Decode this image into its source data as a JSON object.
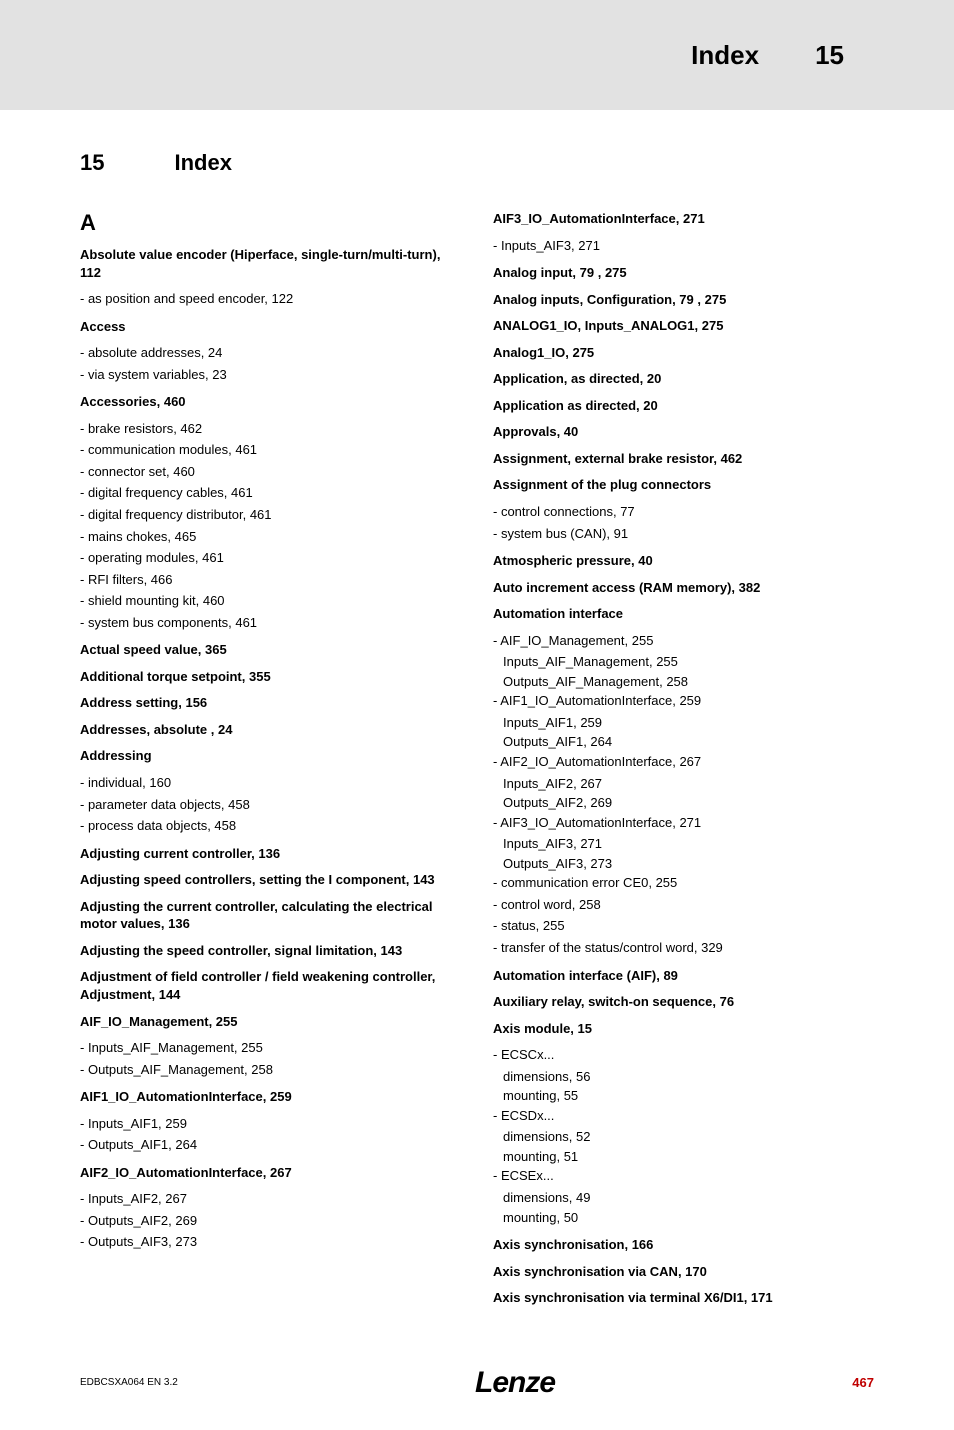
{
  "header": {
    "title": "Index",
    "chapter_number": "15"
  },
  "chapter_heading_num": "15",
  "chapter_heading_title": "Index",
  "alpha_heading": "A",
  "left": {
    "e1": "Absolute value encoder (Hiperface, single-turn/multi-turn),  112",
    "e1s1": "as position and speed encoder,  122",
    "e2": "Access",
    "e2s1": "absolute addresses,  24",
    "e2s2": "via system variables,  23",
    "e3": "Accessories,  460",
    "e3s1": "brake resistors,  462",
    "e3s2": "communication modules,  461",
    "e3s3": "connector set,  460",
    "e3s4": "digital frequency cables,  461",
    "e3s5": "digital frequency distributor,  461",
    "e3s6": "mains chokes,  465",
    "e3s7": "operating modules,  461",
    "e3s8": "RFI filters,  466",
    "e3s9": "shield mounting kit,  460",
    "e3s10": "system bus components,  461",
    "e4": "Actual speed value,  365",
    "e5": "Additional torque setpoint,  355",
    "e6": "Address setting,  156",
    "e7": "Addresses, absolute ,  24",
    "e8": "Addressing",
    "e8s1": "individual,  160",
    "e8s2": "parameter data objects,  458",
    "e8s3": "process data objects,  458",
    "e9": "Adjusting current controller,  136",
    "e10": "Adjusting speed controllers, setting the I component,  143",
    "e11": "Adjusting the current controller, calculating the electrical motor values,  136",
    "e12": "Adjusting the speed controller, signal limitation,  143",
    "e13": "Adjustment of field controller / field weakening controller, Adjustment,  144",
    "e14": "AIF_IO_Management,  255",
    "e14s1": "Inputs_AIF_Management,  255",
    "e14s2": "Outputs_AIF_Management,  258",
    "e15": "AIF1_IO_AutomationInterface,  259",
    "e15s1": "Inputs_AIF1,  259",
    "e15s2": "Outputs_AIF1,  264",
    "e16": "AIF2_IO_AutomationInterface,  267",
    "e16s1": "Inputs_AIF2,  267",
    "e16s2": "Outputs_AIF2,  269",
    "e16s3": "Outputs_AIF3,  273"
  },
  "right": {
    "r1": "AIF3_IO_AutomationInterface,  271",
    "r1s1": "Inputs_AIF3,  271",
    "r2": "Analog input,  79 ,  275",
    "r3": "Analog inputs, Configuration,  79 ,  275",
    "r4": "ANALOG1_IO, Inputs_ANALOG1,  275",
    "r5": "Analog1_IO,  275",
    "r6": "Application, as directed,  20",
    "r7": "Application as directed,  20",
    "r8": "Approvals,  40",
    "r9": "Assignment, external brake resistor,  462",
    "r10": "Assignment of the plug connectors",
    "r10s1": "control connections,  77",
    "r10s2": "system bus (CAN),  91",
    "r11": "Atmospheric pressure,  40",
    "r12": "Auto increment access (RAM memory),  382",
    "r13": "Automation interface",
    "r13s1": "AIF_IO_Management,  255",
    "r13s1a": "Inputs_AIF_Management,  255",
    "r13s1b": "Outputs_AIF_Management,  258",
    "r13s2": "AIF1_IO_AutomationInterface,  259",
    "r13s2a": "Inputs_AIF1,  259",
    "r13s2b": "Outputs_AIF1,  264",
    "r13s3": "AIF2_IO_AutomationInterface,  267",
    "r13s3a": "Inputs_AIF2,  267",
    "r13s3b": "Outputs_AIF2,  269",
    "r13s4": "AIF3_IO_AutomationInterface,  271",
    "r13s4a": "Inputs_AIF3,  271",
    "r13s4b": "Outputs_AIF3,  273",
    "r13s5": "communication error CE0,  255",
    "r13s6": "control word,  258",
    "r13s7": "status,  255",
    "r13s8": "transfer of the status/control word,  329",
    "r14": "Automation interface (AIF),  89",
    "r15": "Auxiliary relay, switch-on sequence,  76",
    "r16": "Axis module,  15",
    "r16s1": "ECSCx...",
    "r16s1a": "dimensions,  56",
    "r16s1b": "mounting,  55",
    "r16s2": "ECSDx...",
    "r16s2a": "dimensions,  52",
    "r16s2b": "mounting,  51",
    "r16s3": "ECSEx...",
    "r16s3a": "dimensions,  49",
    "r16s3b": "mounting,  50",
    "r17": "Axis synchronisation,  166",
    "r18": "Axis synchronisation via CAN,  170",
    "r19": "Axis synchronisation via terminal X6/DI1,  171"
  },
  "footer": {
    "docref": "EDBCSXA064  EN   3.2",
    "brand": "Lenze",
    "page": "467"
  }
}
